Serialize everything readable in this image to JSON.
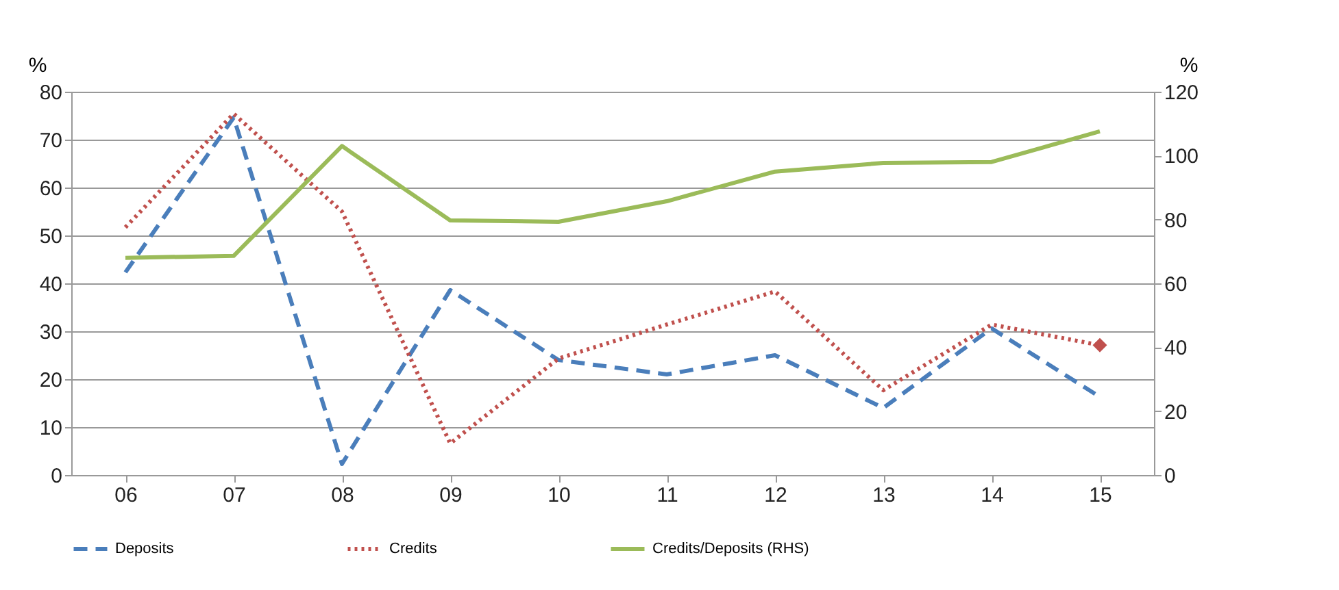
{
  "chart_data": {
    "type": "line",
    "categories": [
      "06",
      "07",
      "08",
      "09",
      "10",
      "11",
      "12",
      "13",
      "14",
      "15"
    ],
    "ylabel": "%",
    "y2label": "%",
    "ylim": [
      0,
      80
    ],
    "yticks": [
      0,
      10,
      20,
      30,
      40,
      50,
      60,
      70,
      80
    ],
    "y2lim": [
      0,
      120
    ],
    "y2ticks": [
      0,
      20,
      40,
      60,
      80,
      100,
      120
    ],
    "grid": "y",
    "legend": "bottom",
    "series": [
      {
        "name": "Deposits",
        "color": "#4a7ebb",
        "line_style": "dashed",
        "values": [
          42.3,
          74.6,
          2.3,
          38.6,
          24,
          21,
          25,
          14,
          30.6,
          16.3
        ]
      },
      {
        "name": "Credits",
        "color": "#c0504d",
        "line_style": "dotted",
        "values": [
          51.7,
          75.4,
          55,
          6.6,
          24.3,
          31.4,
          38.3,
          17.7,
          31.4,
          27.1
        ]
      },
      {
        "type": "scatter",
        "color": "#c0504d",
        "marker": "diamond",
        "x": [
          "15"
        ],
        "values": [
          27.1
        ]
      },
      {
        "name": "Credits/Deposits (RHS)",
        "color": "#9bbb59",
        "line_style": "solid",
        "axis": "y2",
        "values": [
          68,
          68.6,
          103,
          79.7,
          79.3,
          85.7,
          95,
          97.7,
          98,
          107.6
        ]
      }
    ]
  }
}
